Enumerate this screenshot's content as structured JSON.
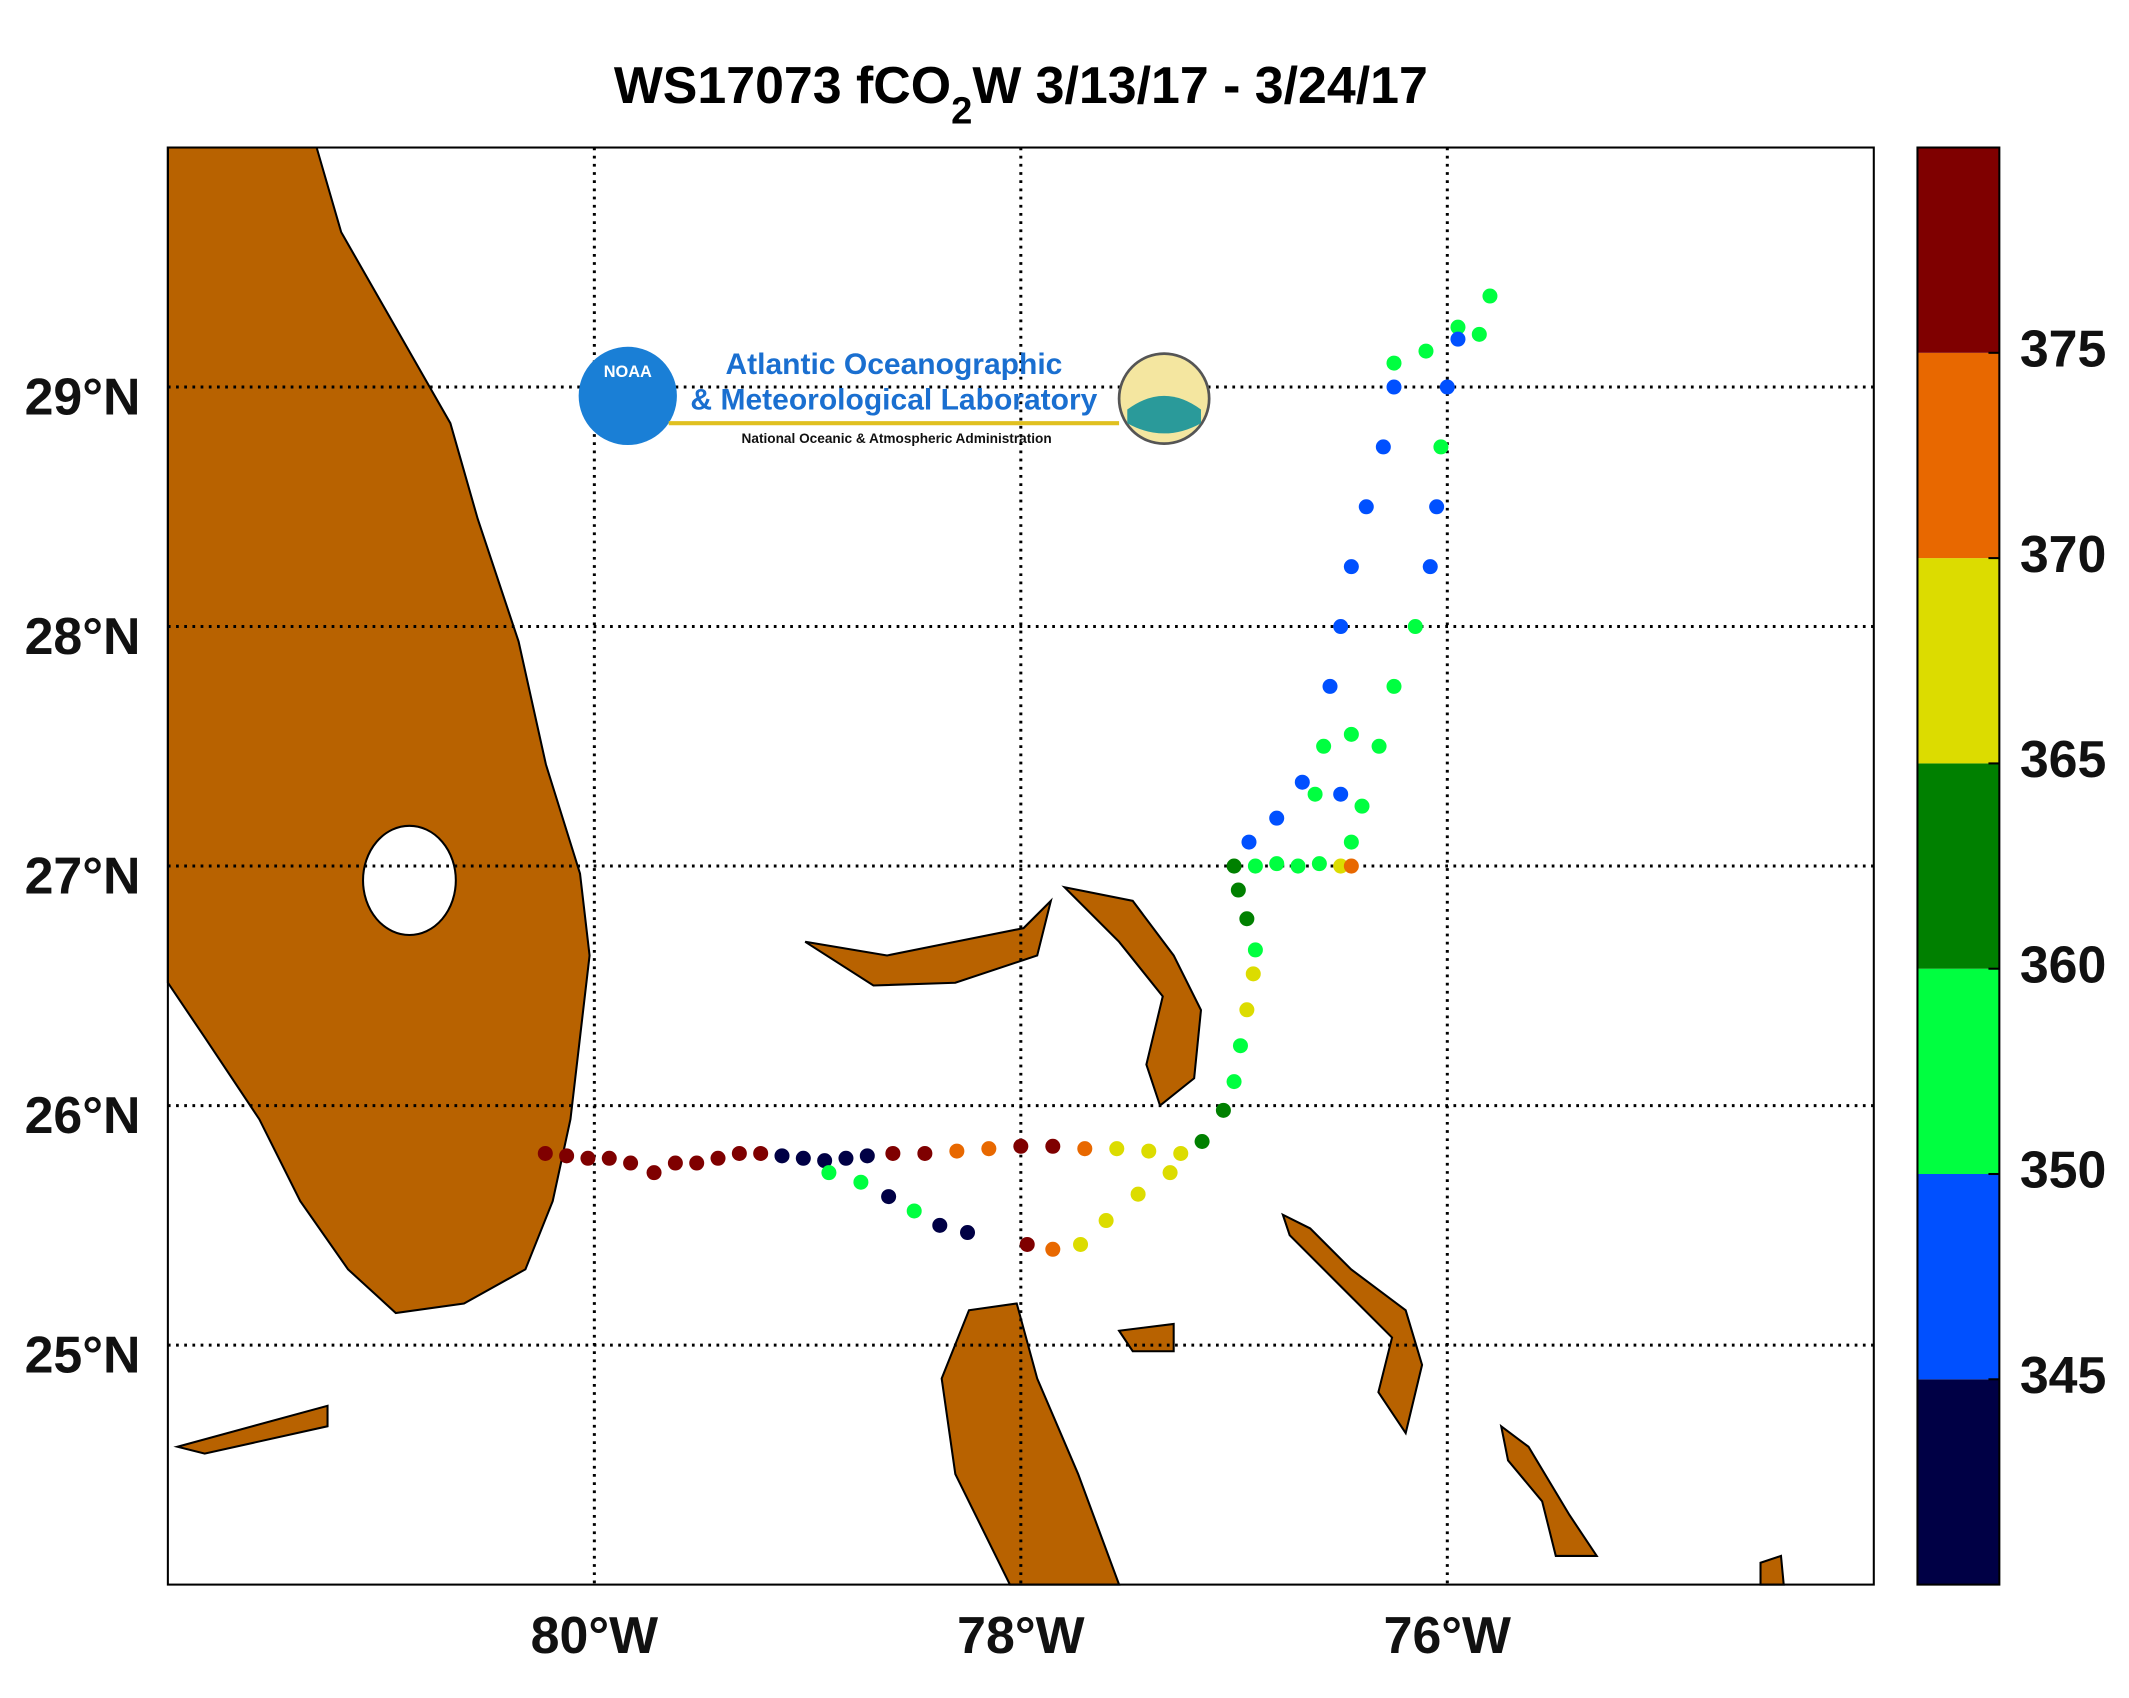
{
  "chart_data": {
    "type": "scatter",
    "title": {
      "text": "WS17073 fCO",
      "subscript": "2",
      "rest": "W 3/13/17 - 3/24/17"
    },
    "logo": {
      "badge": "NOAA",
      "line1": "Atlantic Oceanographic",
      "line2": "& Meteorological Laboratory",
      "line3": "National Oceanic & Atmospheric Administration"
    },
    "xlim": [
      -82,
      -74
    ],
    "ylim": [
      24,
      30
    ],
    "xticks": [
      {
        "value": -80,
        "label": "80°W"
      },
      {
        "value": -78,
        "label": "78°W"
      },
      {
        "value": -76,
        "label": "76°W"
      }
    ],
    "yticks": [
      {
        "value": 25,
        "label": "25°N"
      },
      {
        "value": 26,
        "label": "26°N"
      },
      {
        "value": 27,
        "label": "27°N"
      },
      {
        "value": 28,
        "label": "28°N"
      },
      {
        "value": 29,
        "label": "29°N"
      }
    ],
    "grid": true,
    "colorbar": {
      "colors": [
        "#000045",
        "#0050ff",
        "#00ff40",
        "#008000",
        "#dcdc00",
        "#e86800",
        "#7f0000"
      ],
      "ticks": [
        345,
        350,
        360,
        365,
        370,
        375
      ]
    },
    "x": [
      -80.23,
      -80.13,
      -80.03,
      -79.93,
      -79.83,
      -79.72,
      -79.62,
      -79.52,
      -79.42,
      -79.32,
      -79.22,
      -79.12,
      -79.02,
      -78.92,
      -78.82,
      -78.72,
      -78.9,
      -78.75,
      -78.62,
      -78.5,
      -78.38,
      -78.25,
      -78.6,
      -78.45,
      -78.3,
      -78.15,
      -78.0,
      -77.85,
      -77.7,
      -77.55,
      -77.4,
      -77.25,
      -77.3,
      -77.45,
      -77.6,
      -77.72,
      -77.85,
      -77.97,
      -77.15,
      -77.05,
      -77.0,
      -76.97,
      -76.94,
      -76.91,
      -76.9,
      -76.94,
      -76.98,
      -77.0,
      -76.9,
      -76.8,
      -76.7,
      -76.6,
      -76.5,
      -76.45,
      -76.93,
      -76.8,
      -76.68,
      -76.58,
      -76.55,
      -76.5,
      -76.45,
      -76.38,
      -76.3,
      -76.25,
      -76.25,
      -76.1,
      -75.95,
      -75.8,
      -75.85,
      -75.95,
      -76.0,
      -76.03,
      -76.05,
      -76.08,
      -76.15,
      -76.25,
      -76.32,
      -76.4,
      -76.45,
      -76.62,
      -76.45,
      -76.5
    ],
    "y": [
      25.8,
      25.79,
      25.78,
      25.78,
      25.76,
      25.72,
      25.76,
      25.76,
      25.78,
      25.8,
      25.8,
      25.79,
      25.78,
      25.77,
      25.78,
      25.79,
      25.72,
      25.68,
      25.62,
      25.56,
      25.5,
      25.47,
      25.8,
      25.8,
      25.81,
      25.82,
      25.83,
      25.83,
      25.82,
      25.82,
      25.81,
      25.8,
      25.72,
      25.63,
      25.52,
      25.42,
      25.4,
      25.42,
      25.85,
      25.98,
      26.1,
      26.25,
      26.4,
      26.55,
      26.65,
      26.78,
      26.9,
      27.0,
      27.0,
      27.01,
      27.0,
      27.01,
      27.0,
      27.0,
      27.1,
      27.2,
      27.35,
      27.5,
      27.75,
      28.0,
      28.25,
      28.5,
      28.75,
      29.0,
      29.1,
      29.15,
      29.25,
      29.38,
      29.22,
      29.2,
      29.0,
      28.75,
      28.5,
      28.25,
      28.0,
      27.75,
      27.5,
      27.25,
      27.1,
      27.3,
      27.55,
      27.3
    ],
    "values": [
      377,
      378,
      377,
      376,
      378,
      377,
      376,
      377,
      378,
      377,
      376,
      343,
      342,
      341,
      343,
      342,
      352,
      356,
      343,
      352,
      342,
      343,
      377,
      376,
      372,
      373,
      377,
      378,
      372,
      368,
      367,
      368,
      367,
      368,
      367,
      366,
      372,
      377,
      362,
      363,
      356,
      355,
      367,
      368,
      356,
      362,
      361,
      362,
      356,
      355,
      357,
      356,
      366,
      372,
      347,
      347,
      347,
      356,
      347,
      347,
      347,
      347,
      347,
      347,
      356,
      356,
      356,
      355,
      356,
      347,
      347,
      356,
      347,
      347,
      356,
      356,
      355,
      356,
      356,
      356,
      355,
      347
    ]
  }
}
